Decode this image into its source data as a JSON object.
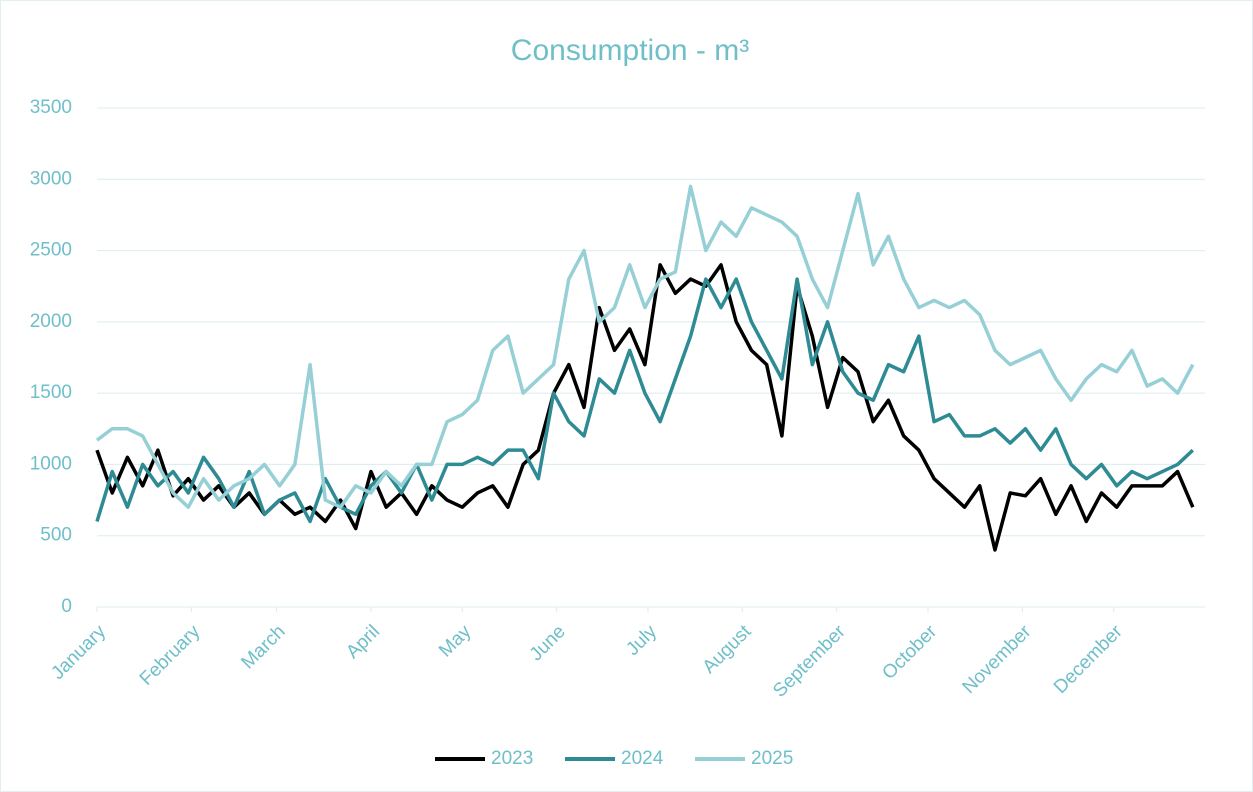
{
  "chart_data": {
    "type": "line",
    "title": "Consumption - m³",
    "x": [
      1,
      6,
      11,
      16,
      21,
      26,
      31,
      36,
      41,
      46,
      51,
      56,
      61,
      66,
      71,
      76,
      81,
      86,
      91,
      96,
      101,
      106,
      111,
      116,
      121,
      126,
      131,
      136,
      141,
      146,
      151,
      156,
      161,
      166,
      171,
      176,
      181,
      186,
      191,
      196,
      201,
      206,
      211,
      216,
      221,
      226,
      231,
      236,
      241,
      246,
      251,
      256,
      261,
      266,
      271,
      276,
      281,
      286,
      291,
      296,
      301,
      306,
      311,
      316,
      321,
      326,
      331,
      336,
      341,
      346,
      351,
      356,
      361
    ],
    "xlim": [
      1,
      365
    ],
    "xticks": [
      {
        "value": 1,
        "label": "January"
      },
      {
        "value": 32,
        "label": "February"
      },
      {
        "value": 60,
        "label": "March"
      },
      {
        "value": 91,
        "label": "April"
      },
      {
        "value": 121,
        "label": "May"
      },
      {
        "value": 152,
        "label": "June"
      },
      {
        "value": 182,
        "label": "July"
      },
      {
        "value": 213,
        "label": "August"
      },
      {
        "value": 244,
        "label": "September"
      },
      {
        "value": 274,
        "label": "October"
      },
      {
        "value": 305,
        "label": "November"
      },
      {
        "value": 335,
        "label": "December"
      }
    ],
    "ylim": [
      0,
      3500
    ],
    "yticks": [
      0,
      500,
      1000,
      1500,
      2000,
      2500,
      3000,
      3500
    ],
    "grid": true,
    "legend": "bottom",
    "series": [
      {
        "name": "2023",
        "color": "#000000",
        "values": [
          1100,
          800,
          1050,
          850,
          1100,
          780,
          900,
          750,
          850,
          700,
          800,
          650,
          750,
          650,
          700,
          600,
          750,
          550,
          950,
          700,
          800,
          650,
          850,
          750,
          700,
          800,
          850,
          700,
          1000,
          1100,
          1500,
          1700,
          1400,
          2100,
          1800,
          1950,
          1700,
          2400,
          2200,
          2300,
          2250,
          2400,
          2000,
          1800,
          1700,
          1200,
          2250,
          1900,
          1400,
          1750,
          1650,
          1300,
          1450,
          1200,
          1100,
          900,
          800,
          700,
          850,
          400,
          800,
          780,
          900,
          650,
          850,
          600,
          800,
          700,
          850,
          850,
          850,
          950,
          700
        ]
      },
      {
        "name": "2024",
        "color": "#2e8b94",
        "values": [
          600,
          950,
          700,
          1000,
          850,
          950,
          800,
          1050,
          900,
          700,
          950,
          650,
          750,
          800,
          600,
          900,
          700,
          650,
          850,
          950,
          800,
          1000,
          750,
          1000,
          1000,
          1050,
          1000,
          1100,
          1100,
          900,
          1500,
          1300,
          1200,
          1600,
          1500,
          1800,
          1500,
          1300,
          1600,
          1900,
          2300,
          2100,
          2300,
          2000,
          1800,
          1600,
          2300,
          1700,
          2000,
          1650,
          1500,
          1450,
          1700,
          1650,
          1900,
          1300,
          1350,
          1200,
          1200,
          1250,
          1150,
          1250,
          1100,
          1250,
          1000,
          900,
          1000,
          850,
          950,
          900,
          950,
          1000,
          1100
        ]
      },
      {
        "name": "2025",
        "color": "#96d0d6",
        "values": [
          1170,
          1250,
          1250,
          1200,
          1000,
          800,
          700,
          900,
          750,
          850,
          900,
          1000,
          850,
          1000,
          1700,
          750,
          700,
          850,
          800,
          950,
          850,
          1000,
          1000,
          1300,
          1350,
          1450,
          1800,
          1900,
          1500,
          1600,
          1700,
          2300,
          2500,
          2000,
          2100,
          2400,
          2100,
          2300,
          2350,
          2950,
          2500,
          2700,
          2600,
          2800,
          2750,
          2700,
          2600,
          2300,
          2100,
          2500,
          2900,
          2400,
          2600,
          2300,
          2100,
          2150,
          2100,
          2150,
          2050,
          1800,
          1700,
          1750,
          1800,
          1600,
          1450,
          1600,
          1700,
          1650,
          1800,
          1550,
          1600,
          1500,
          1700
        ]
      }
    ]
  }
}
